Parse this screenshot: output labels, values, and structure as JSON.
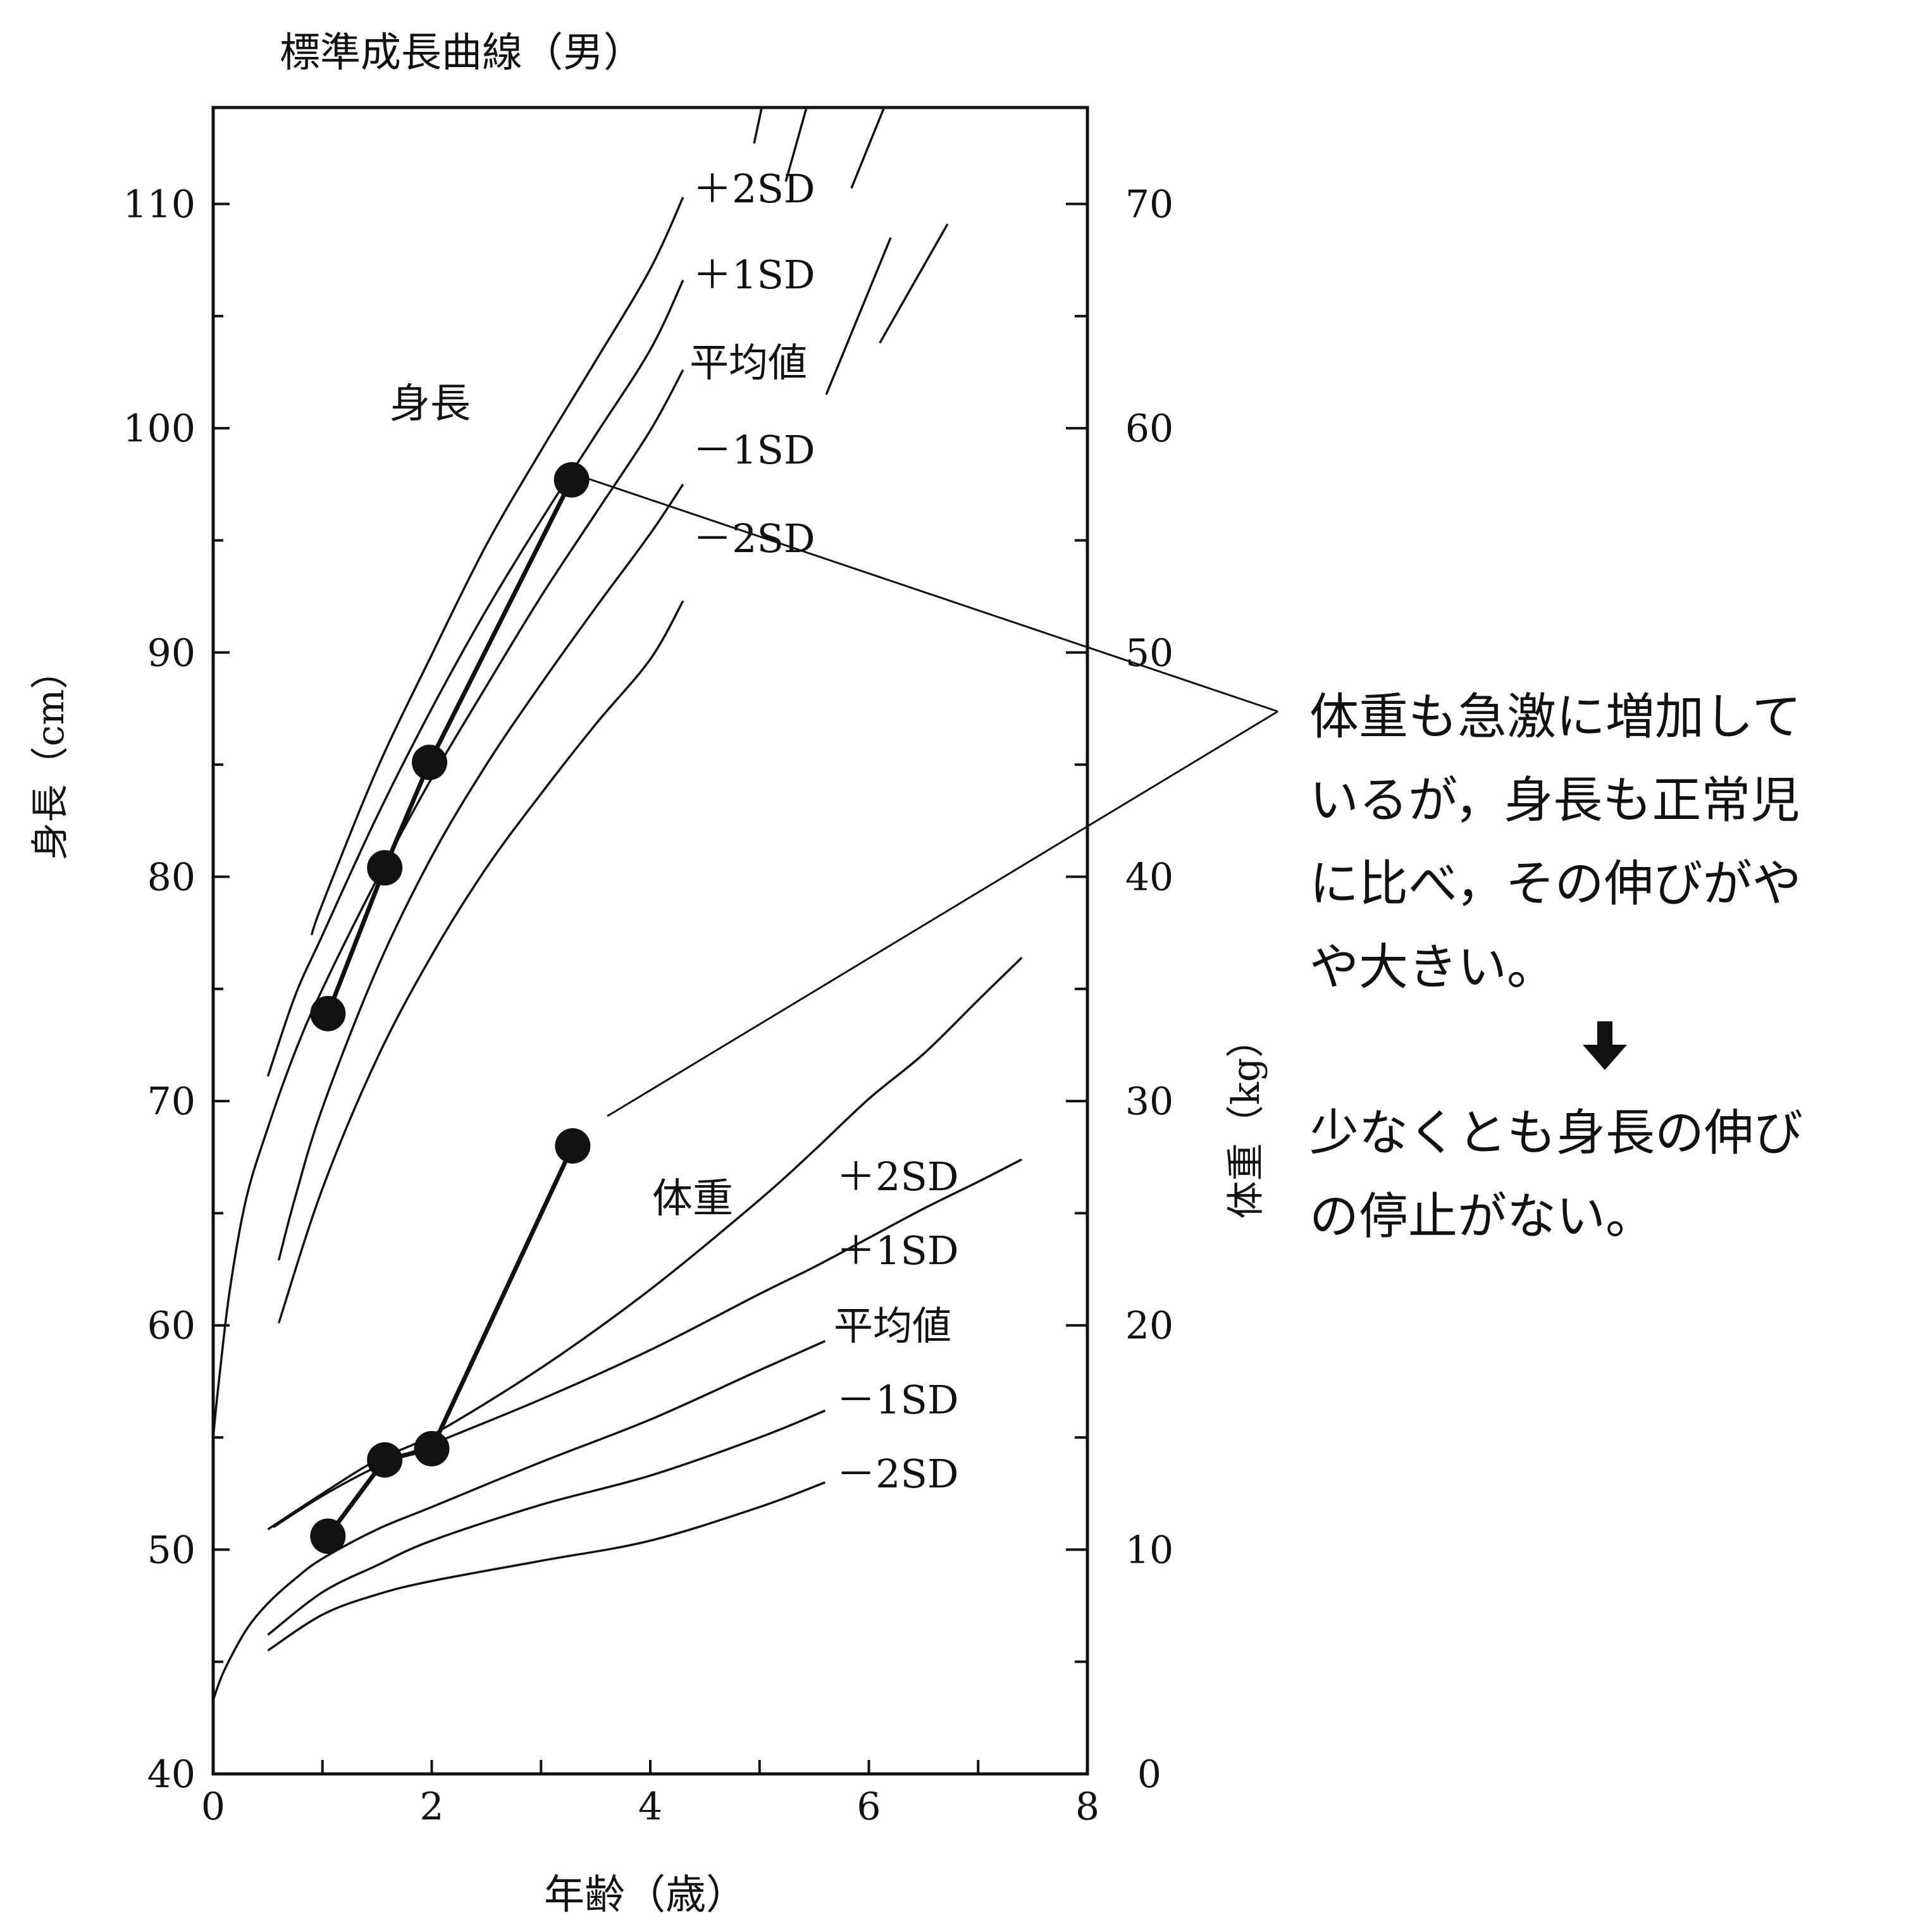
{
  "chart_data": {
    "type": "line",
    "title": "標準成長曲線（男）",
    "xlabel": "年齢（歳）",
    "ylabel_left": "身長（cm）",
    "ylabel_right": "体重（kg）",
    "xlim": [
      0,
      8
    ],
    "ylim_left": [
      40,
      114.3
    ],
    "ylim_right": [
      0,
      74.3
    ],
    "x_ticks": [
      "0",
      "2",
      "4",
      "6",
      "8"
    ],
    "y_ticks_left": [
      "40",
      "50",
      "60",
      "70",
      "80",
      "90",
      "100",
      "110"
    ],
    "y_ticks_right": [
      "0",
      "10",
      "20",
      "30",
      "40",
      "50",
      "60",
      "70"
    ],
    "grid": false,
    "height_label": "身長",
    "weight_label": "体重",
    "height_sd_labels": [
      "＋2SD",
      "＋1SD",
      "平均値",
      "－1SD",
      "－2SD"
    ],
    "weight_sd_labels": [
      "＋2SD",
      "＋1SD",
      "平均値",
      "－1SD",
      "－2SD"
    ],
    "height_curves": [
      {
        "name": "＋2SD",
        "x": [
          0.9,
          1.0,
          1.5,
          2.0,
          2.5,
          3.0,
          3.5,
          4.0,
          4.3
        ],
        "y": [
          77.4,
          78.8,
          84.8,
          89.9,
          94.8,
          99.0,
          103.0,
          107.1,
          110.3
        ]
      },
      {
        "name": "＋1SD",
        "x": [
          0.5,
          0.75,
          1.0,
          1.5,
          2.0,
          2.5,
          3.0,
          3.5,
          4.0,
          4.3
        ],
        "y": [
          71.1,
          74.7,
          77.4,
          82.7,
          87.5,
          91.9,
          95.9,
          99.7,
          103.5,
          106.6
        ]
      },
      {
        "name": "平均値",
        "x": [
          0.0,
          0.05,
          0.15,
          0.3,
          0.5,
          0.75,
          1.0,
          1.5,
          2.0,
          2.5,
          3.0,
          3.5,
          4.0,
          4.3
        ],
        "y": [
          55.0,
          57.4,
          61.5,
          65.6,
          68.8,
          72.2,
          75.0,
          79.9,
          84.4,
          88.5,
          92.5,
          96.2,
          99.9,
          102.6
        ]
      },
      {
        "name": "－1SD",
        "x": [
          0.6,
          0.75,
          1.0,
          1.5,
          2.0,
          2.5,
          3.0,
          3.5,
          4.0,
          4.3
        ],
        "y": [
          62.9,
          65.7,
          69.7,
          75.9,
          80.9,
          85.0,
          88.6,
          92.0,
          95.3,
          97.5
        ]
      },
      {
        "name": "－2SD",
        "x": [
          0.6,
          1.0,
          1.5,
          2.0,
          2.5,
          3.0,
          3.5,
          4.0,
          4.3
        ],
        "y": [
          60.1,
          66.1,
          71.9,
          76.5,
          80.4,
          83.7,
          86.8,
          89.7,
          92.3
        ]
      }
    ],
    "height_curves_upper": [
      {
        "x": [
          4.95,
          5.02
        ],
        "y": [
          112.7,
          114.3
        ]
      },
      {
        "x": [
          5.24,
          5.43
        ],
        "y": [
          111.0,
          114.3
        ]
      },
      {
        "x": [
          5.84,
          6.14
        ],
        "y": [
          110.7,
          114.3
        ]
      },
      {
        "x": [
          5.61,
          6.2
        ],
        "y": [
          101.5,
          108.5
        ]
      },
      {
        "x": [
          6.1,
          6.72
        ],
        "y": [
          103.8,
          109.1
        ]
      }
    ],
    "weight_curves": [
      {
        "name": "＋2SD",
        "x": [
          0.5,
          1.0,
          1.5,
          2.0,
          3.0,
          4.0,
          5.0,
          5.5,
          6.0,
          6.5,
          7.0,
          7.4
        ],
        "y": [
          10.9,
          12.5,
          14.0,
          15.1,
          18.1,
          21.6,
          25.6,
          27.8,
          30.1,
          32.1,
          34.5,
          36.4
        ]
      },
      {
        "name": "＋1SD",
        "x": [
          0.55,
          1.0,
          1.5,
          2.0,
          3.0,
          4.0,
          5.0,
          5.5,
          6.0,
          6.5,
          7.0,
          7.4
        ],
        "y": [
          11.0,
          12.4,
          13.7,
          14.7,
          16.7,
          18.9,
          21.4,
          22.6,
          23.9,
          25.2,
          26.4,
          27.4
        ]
      },
      {
        "name": "平均値",
        "x": [
          0.0,
          0.1,
          0.3,
          0.5,
          0.75,
          1.0,
          1.5,
          2.0,
          3.0,
          4.0,
          5.0,
          5.6
        ],
        "y": [
          3.3,
          4.6,
          6.4,
          7.6,
          8.7,
          9.6,
          10.9,
          11.9,
          13.9,
          15.8,
          18.0,
          19.3
        ]
      },
      {
        "name": "－1SD",
        "x": [
          0.5,
          1.0,
          1.5,
          2.0,
          3.0,
          4.0,
          5.0,
          5.6
        ],
        "y": [
          6.2,
          8.1,
          9.3,
          10.4,
          12.0,
          13.3,
          15.0,
          16.2
        ]
      },
      {
        "name": "－2SD",
        "x": [
          0.5,
          1.0,
          1.5,
          2.0,
          3.0,
          4.0,
          5.0,
          5.6
        ],
        "y": [
          5.5,
          7.1,
          8.0,
          8.6,
          9.5,
          10.4,
          11.9,
          13.0
        ]
      }
    ],
    "patient_height": {
      "x": [
        1.05,
        1.57,
        1.98,
        3.28
      ],
      "y": [
        73.9,
        80.4,
        85.1,
        97.7
      ]
    },
    "patient_weight": {
      "x": [
        1.05,
        1.57,
        2.0,
        3.29
      ],
      "y": [
        10.6,
        14.0,
        14.5,
        28.0
      ]
    }
  },
  "annotation": {
    "lines": [
      "体重も急激に増加して",
      "いるが，身長も正常児",
      "に比べ，その伸びがや",
      "や大きい。"
    ],
    "conclusion_lines": [
      "少なくとも身長の伸び",
      "の停止がない。"
    ]
  }
}
